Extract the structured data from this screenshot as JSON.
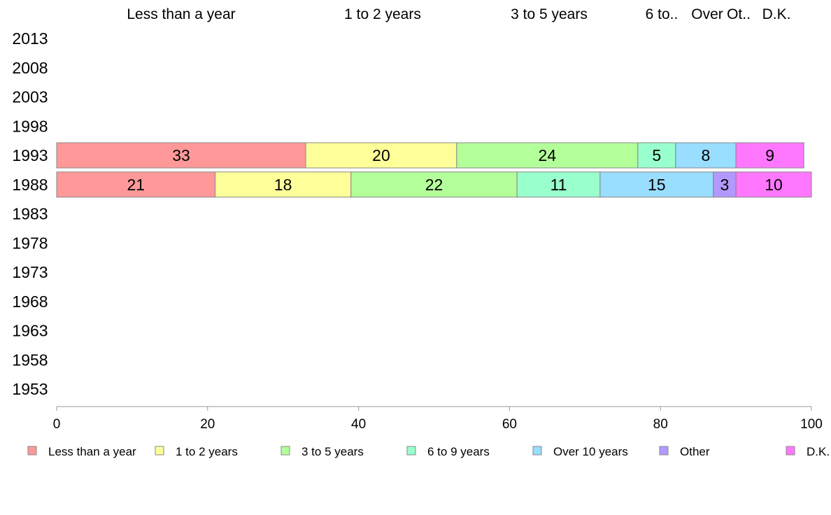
{
  "chart_data": {
    "type": "bar",
    "orientation": "horizontal",
    "stacked": true,
    "top_labels": [
      "Less than a year",
      "1 to 2 years",
      "3 to 5 years",
      "6 to..",
      "Over",
      "Ot..",
      "D.K."
    ],
    "categories": [
      "2013",
      "2008",
      "2003",
      "1998",
      "1993",
      "1988",
      "1983",
      "1978",
      "1973",
      "1968",
      "1963",
      "1958",
      "1953"
    ],
    "series": [
      {
        "name": "Less than a year",
        "color": "#ff9999",
        "values": [
          null,
          null,
          null,
          null,
          33,
          21,
          null,
          null,
          null,
          null,
          null,
          null,
          null
        ]
      },
      {
        "name": "1 to 2 years",
        "color": "#ffff99",
        "values": [
          null,
          null,
          null,
          null,
          20,
          18,
          null,
          null,
          null,
          null,
          null,
          null,
          null
        ]
      },
      {
        "name": "3 to 5 years",
        "color": "#b3ff99",
        "values": [
          null,
          null,
          null,
          null,
          24,
          22,
          null,
          null,
          null,
          null,
          null,
          null,
          null
        ]
      },
      {
        "name": "6 to 9 years",
        "color": "#99ffcc",
        "values": [
          null,
          null,
          null,
          null,
          5,
          11,
          null,
          null,
          null,
          null,
          null,
          null,
          null
        ]
      },
      {
        "name": "Over 10 years",
        "color": "#99ddff",
        "values": [
          null,
          null,
          null,
          null,
          8,
          15,
          null,
          null,
          null,
          null,
          null,
          null,
          null
        ]
      },
      {
        "name": "Other",
        "color": "#b399ff",
        "values": [
          null,
          null,
          null,
          null,
          0,
          3,
          null,
          null,
          null,
          null,
          null,
          null,
          null
        ]
      },
      {
        "name": "D.K.",
        "color": "#ff77ff",
        "values": [
          null,
          null,
          null,
          null,
          9,
          10,
          null,
          null,
          null,
          null,
          null,
          null,
          null
        ]
      }
    ],
    "xlim": [
      0,
      100
    ],
    "xticks": [
      "0",
      "20",
      "40",
      "60",
      "80",
      "100"
    ],
    "legend_position": "bottom",
    "grid": false
  }
}
